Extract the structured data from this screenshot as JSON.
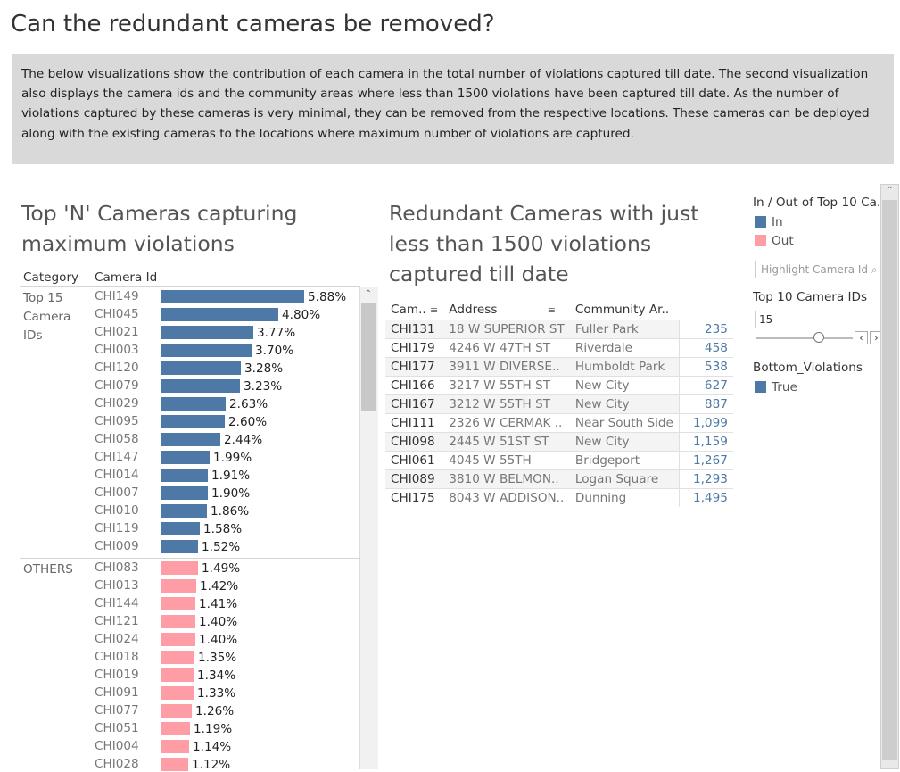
{
  "page": {
    "title": "Can the redundant cameras be removed?",
    "description": "The below visualizations show the contribution of each camera in the total number of violations captured till date. The second visualization also displays the camera ids and the community areas where less than 1500 violations have been captured till date. As the number of violations captured by these cameras is very minimal, they can be removed from the respective locations. These cameras can be deployed along with the existing cameras to the locations where maximum number of violations are captured."
  },
  "left_sheet": {
    "title": "Top 'N' Cameras capturing maximum violations",
    "col_category": "Category",
    "col_camera": "Camera Id",
    "groups": [
      {
        "category": "Top 15 Camera IDs",
        "color": "#4e79a7",
        "rows": [
          {
            "id": "CHI149",
            "value": 5.88,
            "label": "5.88%"
          },
          {
            "id": "CHI045",
            "value": 4.8,
            "label": "4.80%"
          },
          {
            "id": "CHI021",
            "value": 3.77,
            "label": "3.77%"
          },
          {
            "id": "CHI003",
            "value": 3.7,
            "label": "3.70%"
          },
          {
            "id": "CHI120",
            "value": 3.28,
            "label": "3.28%"
          },
          {
            "id": "CHI079",
            "value": 3.23,
            "label": "3.23%"
          },
          {
            "id": "CHI029",
            "value": 2.63,
            "label": "2.63%"
          },
          {
            "id": "CHI095",
            "value": 2.6,
            "label": "2.60%"
          },
          {
            "id": "CHI058",
            "value": 2.44,
            "label": "2.44%"
          },
          {
            "id": "CHI147",
            "value": 1.99,
            "label": "1.99%"
          },
          {
            "id": "CHI014",
            "value": 1.91,
            "label": "1.91%"
          },
          {
            "id": "CHI007",
            "value": 1.9,
            "label": "1.90%"
          },
          {
            "id": "CHI010",
            "value": 1.86,
            "label": "1.86%"
          },
          {
            "id": "CHI119",
            "value": 1.58,
            "label": "1.58%"
          },
          {
            "id": "CHI009",
            "value": 1.52,
            "label": "1.52%"
          }
        ]
      },
      {
        "category": "OTHERS",
        "color": "#ff9da7",
        "rows": [
          {
            "id": "CHI083",
            "value": 1.49,
            "label": "1.49%"
          },
          {
            "id": "CHI013",
            "value": 1.42,
            "label": "1.42%"
          },
          {
            "id": "CHI144",
            "value": 1.41,
            "label": "1.41%"
          },
          {
            "id": "CHI121",
            "value": 1.4,
            "label": "1.40%"
          },
          {
            "id": "CHI024",
            "value": 1.4,
            "label": "1.40%"
          },
          {
            "id": "CHI018",
            "value": 1.35,
            "label": "1.35%"
          },
          {
            "id": "CHI019",
            "value": 1.34,
            "label": "1.34%"
          },
          {
            "id": "CHI091",
            "value": 1.33,
            "label": "1.33%"
          },
          {
            "id": "CHI077",
            "value": 1.26,
            "label": "1.26%"
          },
          {
            "id": "CHI051",
            "value": 1.19,
            "label": "1.19%"
          },
          {
            "id": "CHI004",
            "value": 1.14,
            "label": "1.14%"
          },
          {
            "id": "CHI028",
            "value": 1.12,
            "label": "1.12%"
          }
        ]
      }
    ]
  },
  "mid_sheet": {
    "title": "Redundant Cameras with just less than 1500 violations captured till date",
    "headers": {
      "camera": "Cam..",
      "address": "Address",
      "community": "Community Ar.."
    },
    "rows": [
      {
        "camera": "CHI131",
        "address": "18 W SUPERIOR ST",
        "community": "Fuller Park",
        "violations": "235"
      },
      {
        "camera": "CHI179",
        "address": "4246 W 47TH ST",
        "community": "Riverdale",
        "violations": "458"
      },
      {
        "camera": "CHI177",
        "address": "3911 W DIVERSE..",
        "community": "Humboldt Park",
        "violations": "538"
      },
      {
        "camera": "CHI166",
        "address": "3217 W 55TH ST",
        "community": "New City",
        "violations": "627"
      },
      {
        "camera": "CHI167",
        "address": "3212 W 55TH ST",
        "community": "New City",
        "violations": "887"
      },
      {
        "camera": "CHI111",
        "address": "2326 W CERMAK ..",
        "community": "Near South Side",
        "violations": "1,099"
      },
      {
        "camera": "CHI098",
        "address": "2445 W 51ST ST",
        "community": "New City",
        "violations": "1,159"
      },
      {
        "camera": "CHI061",
        "address": "4045 W 55TH",
        "community": "Bridgeport",
        "violations": "1,267"
      },
      {
        "camera": "CHI089",
        "address": "3810 W BELMON..",
        "community": "Logan Square",
        "violations": "1,293"
      },
      {
        "camera": "CHI175",
        "address": "8043 W ADDISON..",
        "community": "Dunning",
        "violations": "1,495"
      }
    ]
  },
  "right_panel": {
    "legend1_title": "In / Out of Top 10 Ca..",
    "legend1_items": [
      {
        "label": "In",
        "color": "#4e79a7"
      },
      {
        "label": "Out",
        "color": "#ff9da7"
      }
    ],
    "highlight_placeholder": "Highlight Camera Id",
    "param_title": "Top 10 Camera IDs",
    "param_value": "15",
    "param_level": 0.6,
    "legend2_title": "Bottom_Violations",
    "legend2_items": [
      {
        "label": "True",
        "color": "#4e79a7"
      }
    ]
  }
}
